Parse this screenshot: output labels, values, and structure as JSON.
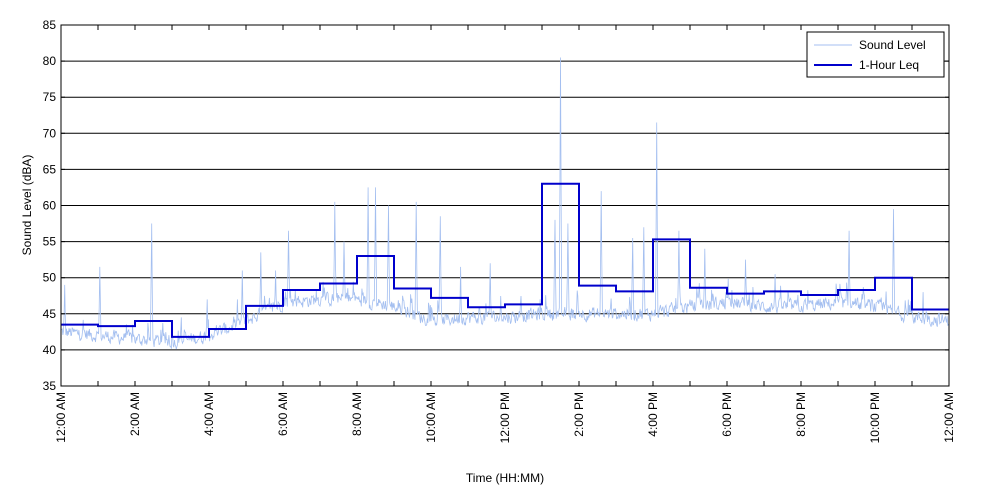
{
  "chart_data": {
    "type": "line",
    "xlabel": "Time (HH:MM)",
    "ylabel": "Sound Level (dBA)",
    "xlim": [
      0,
      24
    ],
    "ylim": [
      35,
      85
    ],
    "yticks": [
      35,
      40,
      45,
      50,
      55,
      60,
      65,
      70,
      75,
      80,
      85
    ],
    "xtick_labels": [
      {
        "x": 0,
        "label": "12:00 AM"
      },
      {
        "x": 2,
        "label": "2:00 AM"
      },
      {
        "x": 4,
        "label": "4:00 AM"
      },
      {
        "x": 6,
        "label": "6:00 AM"
      },
      {
        "x": 8,
        "label": "8:00 AM"
      },
      {
        "x": 10,
        "label": "10:00 AM"
      },
      {
        "x": 12,
        "label": "12:00 PM"
      },
      {
        "x": 14,
        "label": "2:00 PM"
      },
      {
        "x": 16,
        "label": "4:00 PM"
      },
      {
        "x": 18,
        "label": "6:00 PM"
      },
      {
        "x": 20,
        "label": "8:00 PM"
      },
      {
        "x": 22,
        "label": "10:00 PM"
      },
      {
        "x": 24,
        "label": "12:00 AM"
      }
    ],
    "grid": "horizontal",
    "legend_position": "top-right",
    "series": [
      {
        "name": "Sound Level",
        "color": "#a4bff0",
        "style": "thin-line",
        "baseline_by_hour": [
          42.5,
          42,
          41.5,
          41,
          42,
          44,
          46.5,
          47,
          47,
          46,
          44,
          44.5,
          44.5,
          45,
          45,
          45,
          45,
          46,
          46.5,
          46,
          46,
          46.5,
          46,
          44.5,
          44
        ],
        "spikes": [
          {
            "x": 0.1,
            "y": 49
          },
          {
            "x": 1.05,
            "y": 51.5
          },
          {
            "x": 2.45,
            "y": 57.5
          },
          {
            "x": 3.25,
            "y": 44.5
          },
          {
            "x": 3.95,
            "y": 47
          },
          {
            "x": 4.9,
            "y": 51
          },
          {
            "x": 5.4,
            "y": 53.5
          },
          {
            "x": 5.8,
            "y": 51
          },
          {
            "x": 6.15,
            "y": 56.5
          },
          {
            "x": 7.4,
            "y": 60.5
          },
          {
            "x": 7.65,
            "y": 55
          },
          {
            "x": 8.3,
            "y": 62.5
          },
          {
            "x": 8.5,
            "y": 62.5
          },
          {
            "x": 8.85,
            "y": 60
          },
          {
            "x": 9.6,
            "y": 60.5
          },
          {
            "x": 10.25,
            "y": 58.5
          },
          {
            "x": 10.8,
            "y": 51.5
          },
          {
            "x": 11.6,
            "y": 52
          },
          {
            "x": 13.35,
            "y": 58
          },
          {
            "x": 13.5,
            "y": 80.5
          },
          {
            "x": 13.7,
            "y": 57.5
          },
          {
            "x": 14.6,
            "y": 62
          },
          {
            "x": 15.45,
            "y": 55.5
          },
          {
            "x": 15.75,
            "y": 57
          },
          {
            "x": 16.1,
            "y": 71.5
          },
          {
            "x": 16.7,
            "y": 56.5
          },
          {
            "x": 17.4,
            "y": 54
          },
          {
            "x": 18.5,
            "y": 52.5
          },
          {
            "x": 19.3,
            "y": 50.5
          },
          {
            "x": 21.3,
            "y": 56.5
          },
          {
            "x": 22.5,
            "y": 59.5
          },
          {
            "x": 23.3,
            "y": 48
          }
        ]
      },
      {
        "name": "1-Hour Leq",
        "color": "#0000cc",
        "style": "step",
        "hourly_values": [
          43.5,
          43.3,
          44.0,
          41.8,
          42.9,
          46.1,
          48.3,
          49.2,
          53.0,
          48.5,
          47.2,
          45.9,
          46.3,
          63.0,
          48.9,
          48.1,
          55.3,
          48.6,
          47.8,
          48.1,
          47.6,
          48.3,
          50.0,
          45.6
        ]
      }
    ]
  }
}
